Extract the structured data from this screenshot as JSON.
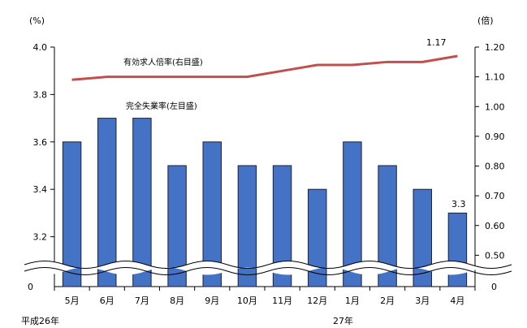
{
  "chart_data": {
    "type": "bar",
    "categories": [
      "5月",
      "6月",
      "7月",
      "8月",
      "9月",
      "10月",
      "11月",
      "12月",
      "1月",
      "2月",
      "3月",
      "4月"
    ],
    "year_labels": [
      "平成26年",
      "27年"
    ],
    "series": [
      {
        "name": "完全失業率(左目盛)",
        "type": "bar",
        "axis": "left",
        "values": [
          3.6,
          3.7,
          3.7,
          3.5,
          3.6,
          3.5,
          3.5,
          3.4,
          3.6,
          3.5,
          3.4,
          3.3
        ],
        "color": "#4472C4",
        "end_label": "3.3"
      },
      {
        "name": "有効求人倍率(右目盛)",
        "type": "line",
        "axis": "right",
        "values": [
          1.09,
          1.1,
          1.1,
          1.1,
          1.1,
          1.1,
          1.12,
          1.14,
          1.14,
          1.15,
          1.15,
          1.17
        ],
        "color": "#C0504D",
        "end_label": "1.17"
      }
    ],
    "y_left": {
      "unit": "(%)",
      "ticks": [
        "4.0",
        "3.8",
        "3.6",
        "3.4",
        "3.2"
      ],
      "zero_label": "0",
      "range": [
        3.0,
        4.0
      ],
      "axis_break": true
    },
    "y_right": {
      "unit": "(倍)",
      "ticks": [
        "1.20",
        "1.10",
        "1.00",
        "0.90",
        "0.80",
        "0.70",
        "0.60",
        "0.50"
      ],
      "zero_label": "0",
      "range": [
        0.4,
        1.2
      ],
      "axis_break": true
    },
    "grid": false
  }
}
